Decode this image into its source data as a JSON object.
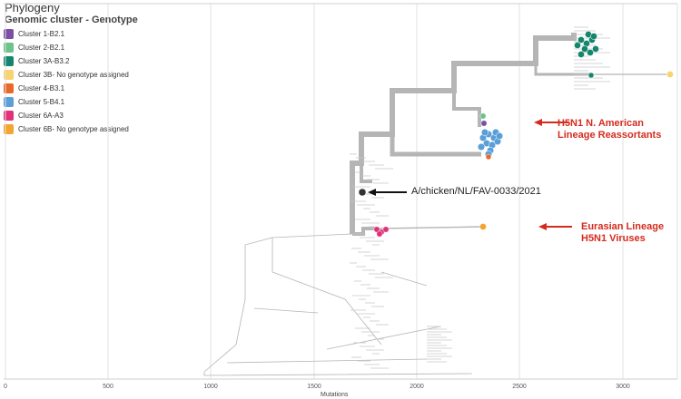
{
  "panel": {
    "title": "Phylogeny",
    "legend_title": "Genomic cluster - Genotype"
  },
  "legend": [
    {
      "label": "Cluster 1-B2.1",
      "color": "#7b4fa6"
    },
    {
      "label": "Cluster 2-B2.1",
      "color": "#6cc38b"
    },
    {
      "label": "Cluster 3A-B3.2",
      "color": "#14866d"
    },
    {
      "label": "Cluster 3B- No genotype assigned",
      "color": "#f7d46f"
    },
    {
      "label": "Cluster 4-B3.1",
      "color": "#e8682a"
    },
    {
      "label": "Cluster 5-B4.1",
      "color": "#5b9fd8"
    },
    {
      "label": "Cluster 6A-A3",
      "color": "#e0317a"
    },
    {
      "label": "Cluster 6B- No genotype assigned",
      "color": "#f3a530"
    }
  ],
  "annotations": {
    "na_line1": "H5N1 N. American",
    "na_line2": "Lineage Reassortants",
    "eu_line1": "Eurasian Lineage",
    "eu_line2": "H5N1 Viruses",
    "strain": "A/chicken/NL/FAV-0033/2021"
  },
  "axis": {
    "title": "Mutations",
    "ticks": [
      "0",
      "500",
      "1000",
      "1500",
      "2000",
      "2500",
      "3000"
    ]
  },
  "colors": {
    "annotation": "#d52b1e",
    "tree": "#b5b5b5",
    "grid": "#e2e2e2",
    "strain_marker": "#333333"
  }
}
